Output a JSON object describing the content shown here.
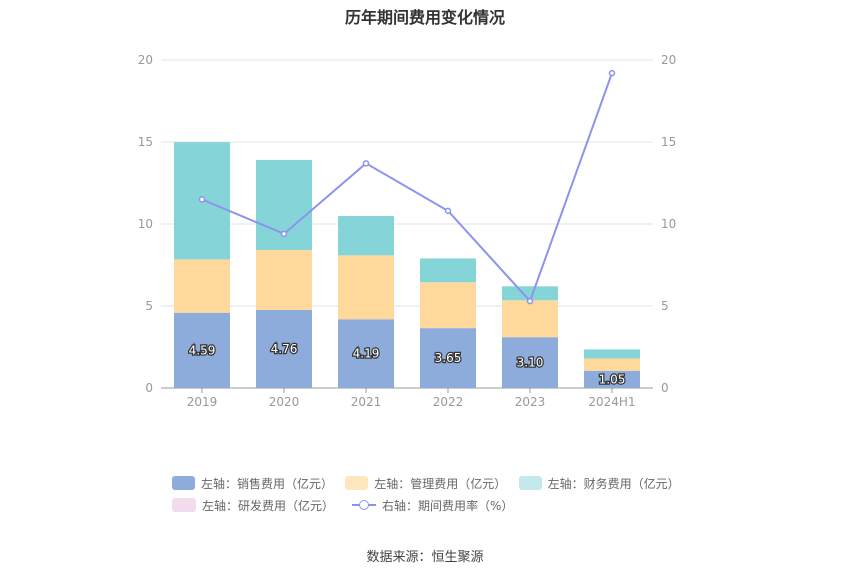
{
  "chart_data": {
    "type": "bar",
    "title": "历年期间费用变化情况",
    "categories": [
      "2019",
      "2020",
      "2021",
      "2022",
      "2023",
      "2024H1"
    ],
    "ylim": [
      0,
      20
    ],
    "y2lim": [
      0,
      20
    ],
    "yticks": [
      "0",
      "5",
      "10",
      "15",
      "20"
    ],
    "y2ticks": [
      "0",
      "5",
      "10",
      "15",
      "20"
    ],
    "stacked": true,
    "series": [
      {
        "name": "左轴：销售费用（亿元）",
        "kind": "bar",
        "axis": "left",
        "color": "#8eacdb",
        "values": [
          4.59,
          4.76,
          4.19,
          3.65,
          3.1,
          1.05
        ],
        "labels": [
          "4.59",
          "4.76",
          "4.19",
          "3.65",
          "3.10",
          "1.05"
        ]
      },
      {
        "name": "左轴：管理费用（亿元）",
        "kind": "bar",
        "axis": "left",
        "color": "#fed99b",
        "values": [
          3.25,
          3.65,
          3.9,
          2.8,
          2.25,
          0.75
        ]
      },
      {
        "name": "左轴：财务费用（亿元）",
        "kind": "bar",
        "axis": "left",
        "color": "#85d5d8",
        "values": [
          7.15,
          5.5,
          2.4,
          1.45,
          0.85,
          0.55
        ]
      },
      {
        "name": "左轴：研发费用（亿元）",
        "kind": "bar",
        "axis": "left",
        "color": "#f3dcee",
        "values": [
          0,
          0,
          0,
          0,
          0,
          0
        ]
      },
      {
        "name": "右轴：期间费用率（%）",
        "kind": "line",
        "axis": "right",
        "color": "#8c93ee",
        "values": [
          11.5,
          9.4,
          13.7,
          10.8,
          5.3,
          19.2
        ]
      }
    ],
    "legend_position": "bottom",
    "grid": true
  },
  "legend_colors": {
    "sales": "#8eacdb",
    "admin": "#fed99b",
    "finance": "#c4e9eb",
    "rd": "#f3dcee"
  },
  "source": "数据来源：恒生聚源"
}
